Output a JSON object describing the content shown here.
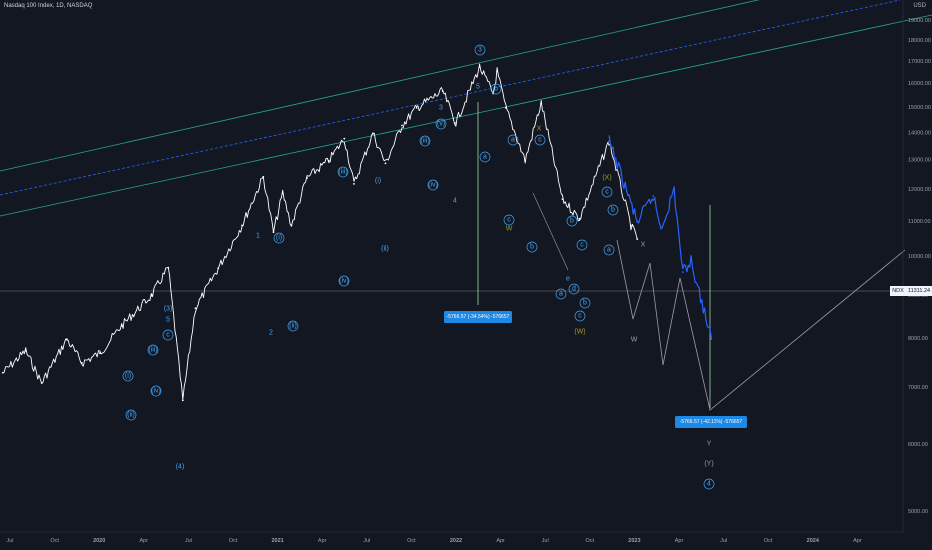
{
  "header": {
    "title": "Nasdaq 100 Index, 1D, NASDAQ",
    "currency": "USD"
  },
  "price_tag": {
    "symbol": "NDX",
    "value": "11311.24"
  },
  "colors": {
    "background": "#131722",
    "price": "#ffffff",
    "projection": "#2962ff",
    "channel": "#26a69a",
    "wave_label": "#42a5f5",
    "wave_label_alt": "#9e9d24",
    "measure_box": "#1e88e5"
  },
  "measurements": [
    {
      "text": "-5766.57 (-34.54%) -576657"
    },
    {
      "text": "-5766.57 (-42.11%) -576657"
    }
  ],
  "chart_data": {
    "type": "line",
    "title": "Nasdaq 100 Index, 1D, NASDAQ",
    "xlabel": "",
    "ylabel": "",
    "scale": "log",
    "ylim": [
      4700,
      20500
    ],
    "x_ticks": [
      "Jul",
      "Oct",
      "2020",
      "Apr",
      "Jul",
      "Oct",
      "2021",
      "Apr",
      "Jul",
      "Oct",
      "2022",
      "Apr",
      "Jul",
      "Oct",
      "2023",
      "Apr",
      "Jul",
      "Oct",
      "2024",
      "Apr"
    ],
    "y_ticks": [
      5000,
      6000,
      7000,
      8000,
      9000,
      10000,
      11000,
      12000,
      13000,
      14000,
      15000,
      16000,
      17000,
      18000,
      19000
    ],
    "y_tick_labels": [
      "5000.00",
      "6000.00",
      "7000.00",
      "8000.00",
      "9000.00",
      "10000.00",
      "11000.00",
      "12000.00",
      "13000.00",
      "14000.00",
      "15000.00",
      "16000.00",
      "17000.00",
      "18000.00",
      "19000.00"
    ],
    "grid": false,
    "legend": "none",
    "series": [
      {
        "x": [
          "2019-03-15",
          "2019-05-01",
          "2019-06-03",
          "2019-07-25",
          "2019-08-25",
          "2019-10-01",
          "2019-11-15",
          "2020-01-15",
          "2020-02-19",
          "2020-03-20",
          "2020-04-15",
          "2020-06-01",
          "2020-07-20",
          "2020-09-02",
          "2020-09-23",
          "2020-10-12",
          "2020-10-30",
          "2020-12-01",
          "2021-01-15",
          "2021-02-16",
          "2021-03-08",
          "2021-04-16",
          "2021-05-12",
          "2021-06-15",
          "2021-07-15",
          "2021-09-07",
          "2021-10-04",
          "2021-11-22",
          "2021-12-20",
          "2021-12-28",
          "2022-01-15",
          "2022-02-24",
          "2022-03-29",
          "2022-05-12",
          "2022-06-16",
          "2022-08-16",
          "2022-09-30",
          "2022-10-13"
        ],
        "y": [
          7300,
          7750,
          7100,
          8000,
          7500,
          7700,
          8300,
          9000,
          9718,
          6772,
          8700,
          9700,
          10900,
          12440,
          10700,
          11900,
          10900,
          12400,
          13000,
          13800,
          12200,
          14000,
          12900,
          14300,
          15000,
          15700,
          14400,
          16760,
          15600,
          16570,
          15000,
          13000,
          15200,
          11700,
          11100,
          13700,
          10900,
          10500
        ]
      },
      {
        "name": "projection",
        "x": [
          "2022-08-16",
          "2022-09-10",
          "2022-10-13",
          "2022-11-15",
          "2022-12-01",
          "2022-12-28",
          "2023-01-15",
          "2023-02-01",
          "2023-03-15"
        ],
        "y": [
          13700,
          12500,
          11000,
          11800,
          10800,
          12000,
          9600,
          9900,
          8000
        ]
      }
    ]
  },
  "wave_labels": [
    "(3)",
    "5",
    "c",
    "(iii)",
    "(i)",
    "(iv)",
    "(ii)",
    "(4)",
    "1",
    "(i)",
    "2",
    "(ii)",
    "(iii)",
    "(i)",
    "(iv)",
    "(ii)",
    "(iii)",
    "(iv)",
    "3",
    "(v)",
    "4",
    "3",
    "5",
    "b",
    "a",
    "a",
    "c",
    "b",
    "W",
    "X",
    "c",
    "(X)",
    "c",
    "b",
    "a",
    "b",
    "c",
    "e",
    "d",
    "a",
    "b",
    "c",
    "(W)",
    "X",
    "W",
    "Y",
    "(Y)",
    "4"
  ]
}
